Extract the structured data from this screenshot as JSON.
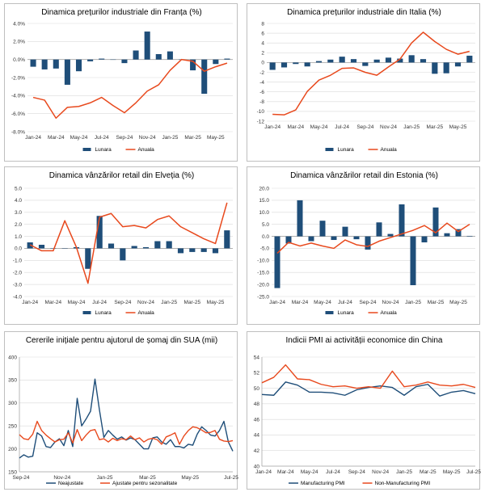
{
  "colors": {
    "bar": "#1f4e79",
    "line_orange": "#e8491d",
    "line_blue": "#1f4e79",
    "grid": "#d9d9d9",
    "axis": "#a6a6a6"
  },
  "chart_data": [
    {
      "id": "fr",
      "type": "bar+line",
      "title": "Dinamica prețurilor industriale din Franța (%)",
      "categories": [
        "Jan-24",
        "Feb-24",
        "Mar-24",
        "Apr-24",
        "May-24",
        "Jun-24",
        "Jul-24",
        "Aug-24",
        "Sep-24",
        "Oct-24",
        "Nov-24",
        "Dec-24",
        "Jan-25",
        "Feb-25",
        "Mar-25",
        "Apr-25",
        "May-25",
        "Jun-25"
      ],
      "x_tick_labels": [
        "Jan-24",
        "Mar-24",
        "May-24",
        "Jul-24",
        "Sep-24",
        "Nov-24",
        "Jan-25",
        "Mar-25",
        "May-25"
      ],
      "y_ticks": [
        "4.0%",
        "2.0%",
        "0.0%",
        "-2.0%",
        "-4.0%",
        "-6.0%",
        "-8.0%"
      ],
      "ylim": [
        -8,
        4
      ],
      "y_step": 2,
      "series": [
        {
          "name": "Lunara",
          "type": "bar",
          "values": [
            -0.8,
            -1.1,
            -1.0,
            -2.8,
            -1.3,
            -0.2,
            0.1,
            0.0,
            -0.4,
            1.0,
            3.1,
            0.6,
            0.9,
            0.0,
            -1.2,
            -3.8,
            -0.5,
            0.1
          ]
        },
        {
          "name": "Anuala",
          "type": "line",
          "values": [
            -4.2,
            -4.5,
            -6.5,
            -5.3,
            -5.2,
            -4.8,
            -4.2,
            -5.1,
            -5.9,
            -4.8,
            -3.5,
            -2.8,
            -1.2,
            0.0,
            -0.2,
            -1.3,
            -0.8,
            -0.4
          ]
        }
      ]
    },
    {
      "id": "it",
      "type": "bar+line",
      "title": "Dinamica prețurilor industriale din Italia (%)",
      "categories": [
        "Jan-24",
        "Feb-24",
        "Mar-24",
        "Apr-24",
        "May-24",
        "Jun-24",
        "Jul-24",
        "Aug-24",
        "Sep-24",
        "Oct-24",
        "Nov-24",
        "Dec-24",
        "Jan-25",
        "Feb-25",
        "Mar-25",
        "Apr-25",
        "May-25",
        "Jun-25"
      ],
      "x_tick_labels": [
        "Jan-24",
        "Mar-24",
        "May-24",
        "Jul-24",
        "Sep-24",
        "Nov-24",
        "Jan-25",
        "Mar-25",
        "May-25"
      ],
      "y_ticks": [
        "8",
        "6",
        "4",
        "2",
        "0",
        "-2",
        "-4",
        "-6",
        "-8",
        "-10",
        "-12"
      ],
      "ylim": [
        -12,
        8
      ],
      "y_step": 2,
      "series": [
        {
          "name": "Lunara",
          "type": "bar",
          "values": [
            -1.5,
            -1.0,
            -0.3,
            -0.8,
            0.3,
            0.6,
            1.2,
            0.7,
            -0.7,
            0.6,
            1.0,
            0.8,
            1.5,
            0.7,
            -2.3,
            -2.2,
            -0.8,
            1.4
          ]
        },
        {
          "name": "Anuala",
          "type": "line",
          "values": [
            -10.6,
            -10.7,
            -9.7,
            -5.9,
            -3.6,
            -2.6,
            -1.2,
            -1.1,
            -2.0,
            -2.6,
            -0.9,
            0.7,
            4.0,
            6.2,
            4.3,
            2.7,
            1.7,
            2.3
          ]
        }
      ]
    },
    {
      "id": "ch",
      "type": "bar+line",
      "title": "Dinamica vânzărilor retail din Elveția (%)",
      "categories": [
        "Jan-24",
        "Feb-24",
        "Mar-24",
        "Apr-24",
        "May-24",
        "Jun-24",
        "Jul-24",
        "Aug-24",
        "Sep-24",
        "Oct-24",
        "Nov-24",
        "Dec-24",
        "Jan-25",
        "Feb-25",
        "Mar-25",
        "Apr-25",
        "May-25",
        "Jun-25"
      ],
      "x_tick_labels": [
        "Jan-24",
        "Mar-24",
        "May-24",
        "Jul-24",
        "Sep-24",
        "Nov-24",
        "Jan-25",
        "Mar-25",
        "May-25"
      ],
      "y_ticks": [
        "5.0",
        "4.0",
        "3.0",
        "2.0",
        "1.0",
        "0.0",
        "-1.0",
        "-2.0",
        "-3.0",
        "-4.0"
      ],
      "ylim": [
        -4,
        5
      ],
      "y_step": 1,
      "series": [
        {
          "name": "Lunara",
          "type": "bar",
          "values": [
            0.5,
            0.3,
            0.0,
            0.0,
            0.1,
            -1.7,
            2.7,
            0.4,
            -1.0,
            0.2,
            0.1,
            0.6,
            0.6,
            -0.4,
            -0.3,
            -0.3,
            -0.4,
            1.5
          ]
        },
        {
          "name": "Anuala",
          "type": "line",
          "values": [
            0.3,
            -0.2,
            -0.2,
            2.3,
            0.1,
            -2.9,
            2.6,
            2.9,
            1.8,
            1.9,
            1.7,
            2.4,
            2.7,
            1.8,
            1.3,
            0.8,
            0.4,
            3.8
          ]
        }
      ]
    },
    {
      "id": "ee",
      "type": "bar+line",
      "title": "Dinamica vânzărilor retail din Estonia (%)",
      "categories": [
        "Jan-24",
        "Feb-24",
        "Mar-24",
        "Apr-24",
        "May-24",
        "Jun-24",
        "Jul-24",
        "Aug-24",
        "Sep-24",
        "Oct-24",
        "Nov-24",
        "Dec-24",
        "Jan-25",
        "Feb-25",
        "Mar-25",
        "Apr-25",
        "May-25",
        "Jun-25"
      ],
      "x_tick_labels": [
        "Jan-24",
        "Mar-24",
        "May-24",
        "Jul-24",
        "Sep-24",
        "Nov-24",
        "Jan-25",
        "Mar-25",
        "May-25"
      ],
      "y_ticks": [
        "20.0",
        "15.0",
        "10.0",
        "5.0",
        "0.0",
        "-5.0",
        "-10.0",
        "-15.0",
        "-20.0",
        "-25.0"
      ],
      "ylim": [
        -25,
        20
      ],
      "y_step": 5,
      "series": [
        {
          "name": "Lunara",
          "type": "bar",
          "values": [
            -21.5,
            -3.0,
            15.0,
            -2.0,
            6.5,
            -1.5,
            4.0,
            -1.2,
            -5.5,
            5.8,
            1.0,
            13.3,
            -20.3,
            -2.5,
            12.0,
            1.3,
            3.0,
            0.2
          ]
        },
        {
          "name": "Anuala",
          "type": "line",
          "values": [
            -7.0,
            -2.5,
            -4.0,
            -2.8,
            -4.0,
            -5.0,
            -1.5,
            -3.5,
            -4.2,
            -2.0,
            -0.5,
            1.0,
            2.5,
            4.5,
            1.5,
            5.5,
            2.0,
            5.0
          ]
        }
      ]
    },
    {
      "id": "us",
      "type": "line",
      "title": "Cererile inițiale pentru ajutorul de șomaj din SUA (mii)",
      "x_tick_labels": [
        "Sep-24",
        "Nov-24",
        "Jan-25",
        "Mar-25",
        "May-25",
        "Jul-25"
      ],
      "y_ticks": [
        "400",
        "350",
        "300",
        "250",
        "200",
        "150"
      ],
      "ylim": [
        150,
        400
      ],
      "y_step": 50,
      "series": [
        {
          "name": "Neajustate",
          "type": "line",
          "values": [
            180,
            187,
            182,
            184,
            235,
            228,
            205,
            203,
            215,
            222,
            207,
            240,
            205,
            310,
            250,
            265,
            282,
            352,
            285,
            225,
            240,
            230,
            221,
            226,
            219,
            224,
            220,
            210,
            200,
            200,
            224,
            226,
            215,
            210,
            220,
            205,
            205,
            202,
            210,
            208,
            232,
            248,
            240,
            230,
            228,
            240,
            260,
            215,
            195
          ]
        },
        {
          "name": "Ajustate pentru sezonalitate",
          "type": "line",
          "values": [
            231,
            222,
            220,
            232,
            260,
            240,
            230,
            222,
            215,
            220,
            221,
            235,
            213,
            242,
            218,
            230,
            240,
            242,
            220,
            222,
            215,
            223,
            218,
            222,
            220,
            228,
            220,
            224,
            215,
            221,
            223,
            220,
            210,
            226,
            230,
            235,
            210,
            228,
            240,
            248,
            246,
            241,
            235,
            236,
            240,
            221,
            217,
            216,
            218
          ]
        }
      ]
    },
    {
      "id": "cn",
      "type": "line",
      "title": "Indicii PMI ai activității economice din China",
      "x_tick_labels": [
        "Jan-24",
        "Mar-24",
        "May-24",
        "Jul-24",
        "Sep-24",
        "Nov-24",
        "Jan-25",
        "Mar-25",
        "May-25",
        "Jul-25"
      ],
      "y_ticks": [
        "54",
        "52",
        "50",
        "48",
        "46",
        "44",
        "42",
        "40"
      ],
      "ylim": [
        40,
        54
      ],
      "y_step": 2,
      "series": [
        {
          "name": "Manufacturing PMI",
          "type": "line",
          "values": [
            49.2,
            49.1,
            50.8,
            50.4,
            49.5,
            49.5,
            49.4,
            49.1,
            49.8,
            50.1,
            50.3,
            50.1,
            49.1,
            50.2,
            50.5,
            49.0,
            49.5,
            49.7,
            49.3
          ]
        },
        {
          "name": "Non-Manufacturing PMI",
          "type": "line",
          "values": [
            50.7,
            51.4,
            53.0,
            51.2,
            51.1,
            50.5,
            50.2,
            50.3,
            50.0,
            50.2,
            50.0,
            52.2,
            50.2,
            50.4,
            50.8,
            50.4,
            50.3,
            50.5,
            50.1
          ]
        }
      ]
    }
  ]
}
